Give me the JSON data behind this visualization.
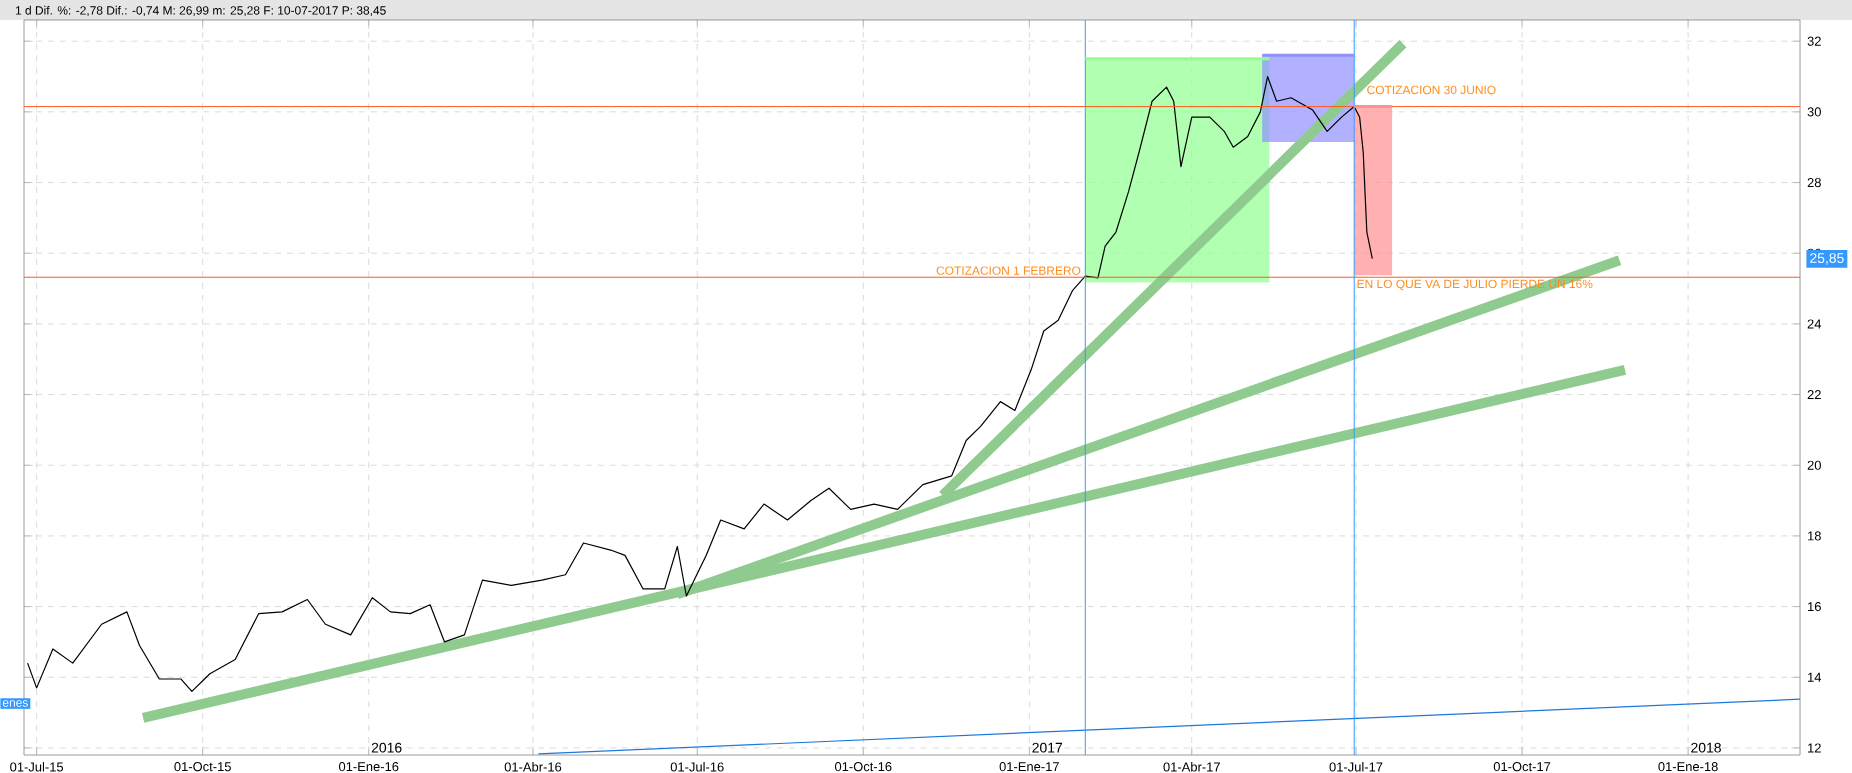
{
  "chart_data": {
    "type": "line",
    "title": "1 d Dif. %: -2,78 Dif.: -0,74 M: 26,99 m: 25,28 F: 10-07-2017 P: 38,45",
    "xlim": [
      "2015-06-24",
      "2018-03-04"
    ],
    "ylim": [
      11.8,
      32.6
    ],
    "xticks": [
      {
        "value": "2015-07-01",
        "label": "01-Jul-15"
      },
      {
        "value": "2015-10-01",
        "label": "01-Oct-15"
      },
      {
        "value": "2016-01-01",
        "label": "01-Ene-16"
      },
      {
        "value": "2016-04-01",
        "label": "01-Abr-16"
      },
      {
        "value": "2016-07-01",
        "label": "01-Jul-16"
      },
      {
        "value": "2016-10-01",
        "label": "01-Oct-16"
      },
      {
        "value": "2017-01-01",
        "label": "01-Ene-17"
      },
      {
        "value": "2017-04-01",
        "label": "01-Abr-17"
      },
      {
        "value": "2017-07-01",
        "label": "01-Jul-17"
      },
      {
        "value": "2017-10-01",
        "label": "01-Oct-17"
      },
      {
        "value": "2018-01-01",
        "label": "01-Ene-18"
      }
    ],
    "yticks": [
      12,
      14,
      16,
      18,
      20,
      22,
      24,
      26,
      28,
      30,
      32
    ],
    "grid": true,
    "series": [
      {
        "type": "line",
        "color": "#90ff90",
        "x": [
          "2017-02-01",
          "2017-05-14"
        ],
        "values": [
          31.5,
          31.5
        ],
        "lower": [
          25.17,
          25.17
        ],
        "upper": [
          31.5,
          31.5
        ]
      },
      {
        "type": "line",
        "color": "#9090ff",
        "x": [
          "2017-05-10",
          "2017-06-30"
        ],
        "values": [
          31.6,
          31.6
        ],
        "lower": [
          29.15,
          29.15
        ],
        "upper": [
          31.6,
          31.6
        ]
      },
      {
        "type": "line",
        "color": "#ff9090",
        "x": [
          "2017-06-30",
          "2017-07-21"
        ],
        "values": [
          30.15,
          30.15
        ],
        "lower": [
          25.38,
          25.38
        ],
        "upper": [
          30.15,
          30.15
        ]
      },
      {
        "color": "#000000",
        "x": [
          "2015-06-26",
          "2015-07-01",
          "2015-07-10",
          "2015-07-21",
          "2015-08-06",
          "2015-08-20",
          "2015-08-27",
          "2015-09-07",
          "2015-09-19",
          "2015-09-25",
          "2015-10-05",
          "2015-10-19",
          "2015-11-01",
          "2015-11-14",
          "2015-11-28",
          "2015-12-08",
          "2015-12-22",
          "2016-01-03",
          "2016-01-13",
          "2016-01-24",
          "2016-02-04",
          "2016-02-12",
          "2016-02-23",
          "2016-03-04",
          "2016-03-20",
          "2016-04-06",
          "2016-04-19",
          "2016-04-29",
          "2016-05-14",
          "2016-05-22",
          "2016-06-01",
          "2016-06-13",
          "2016-06-20",
          "2016-06-25",
          "2016-07-06",
          "2016-07-14",
          "2016-07-27",
          "2016-08-07",
          "2016-08-20",
          "2016-09-02",
          "2016-09-12",
          "2016-09-24",
          "2016-10-07",
          "2016-10-20",
          "2016-11-03",
          "2016-11-19",
          "2016-11-27",
          "2016-12-05",
          "2016-12-16",
          "2016-12-24",
          "2017-01-02",
          "2017-01-09",
          "2017-01-17",
          "2017-01-25",
          "2017-02-01",
          "2017-02-08",
          "2017-02-12",
          "2017-02-18",
          "2017-02-25",
          "2017-03-03",
          "2017-03-10",
          "2017-03-18",
          "2017-03-22",
          "2017-03-26",
          "2017-04-01",
          "2017-04-11",
          "2017-04-19",
          "2017-04-24",
          "2017-05-02",
          "2017-05-09",
          "2017-05-13",
          "2017-05-18",
          "2017-05-26",
          "2017-06-07",
          "2017-06-15",
          "2017-06-23",
          "2017-06-30",
          "2017-07-03",
          "2017-07-05",
          "2017-07-06",
          "2017-07-07",
          "2017-07-10"
        ],
        "values": [
          14.4,
          13.7,
          14.8,
          14.4,
          15.5,
          15.85,
          14.9,
          13.95,
          13.95,
          13.6,
          14.1,
          14.5,
          15.8,
          15.85,
          16.2,
          15.5,
          15.2,
          16.25,
          15.85,
          15.8,
          16.05,
          15.0,
          15.2,
          16.75,
          16.6,
          16.75,
          16.9,
          17.8,
          17.6,
          17.45,
          16.5,
          16.5,
          17.7,
          16.3,
          17.45,
          18.45,
          18.2,
          18.9,
          18.45,
          19.0,
          19.35,
          18.75,
          18.9,
          18.75,
          19.45,
          19.7,
          20.7,
          21.1,
          21.8,
          21.55,
          22.7,
          23.8,
          24.1,
          24.95,
          25.35,
          25.3,
          26.2,
          26.6,
          27.75,
          28.9,
          30.3,
          30.7,
          30.3,
          28.45,
          29.85,
          29.85,
          29.45,
          29.0,
          29.3,
          30.0,
          31.0,
          30.3,
          30.4,
          30.05,
          29.45,
          29.85,
          30.15,
          29.85,
          28.85,
          27.7,
          26.6,
          25.85
        ]
      },
      {
        "type": "line",
        "color": "#8fca8f",
        "x": [
          "2015-08-29",
          "2017-11-27"
        ],
        "values": [
          12.85,
          22.7
        ]
      },
      {
        "type": "line",
        "color": "#8fca8f",
        "x": [
          "2016-06-20",
          "2017-11-24"
        ],
        "values": [
          16.35,
          25.8
        ]
      },
      {
        "type": "line",
        "color": "#8fca8f",
        "x": [
          "2016-11-14",
          "2017-07-27"
        ],
        "values": [
          19.15,
          31.93
        ]
      },
      {
        "type": "line",
        "color": "#1e78dc",
        "x": [
          "2016-04-04",
          "2018-03-04"
        ],
        "values": [
          11.83,
          13.38
        ]
      }
    ],
    "ref_lines": [
      {
        "axis": "y",
        "value": 30.15,
        "color": "#ff5a1e"
      },
      {
        "axis": "y",
        "value": 25.32,
        "color": "#ff5a1e"
      },
      {
        "axis": "x",
        "value": "2017-02-01",
        "color": "#3399ff"
      },
      {
        "axis": "x",
        "value": "2017-06-30",
        "color": "#3399ff"
      }
    ],
    "annotations": [
      {
        "text": "COTIZACION 1 FEBRERO",
        "x": "2017-02-01",
        "y": 25.32
      },
      {
        "text": "COTIZACION 30 JUNIO",
        "x": "2017-06-30",
        "y": 30.15
      },
      {
        "text": "EN LO QUE VA DE JULIO PIERDE UN 16%",
        "x": "2017-06-30",
        "y": 25.32
      },
      "25,85",
      "enes",
      "2016",
      "2017",
      "2018"
    ]
  }
}
